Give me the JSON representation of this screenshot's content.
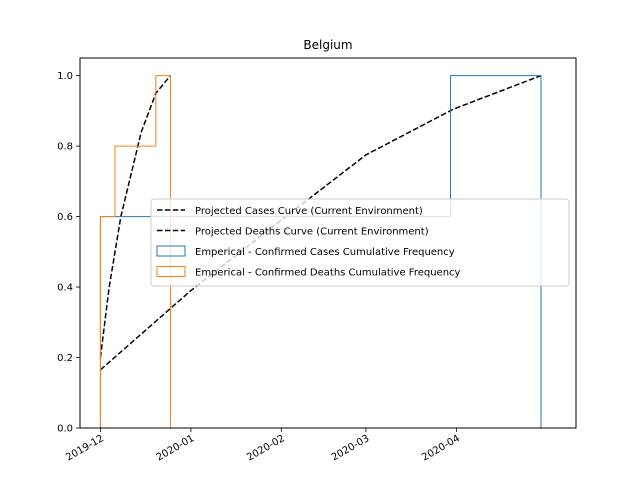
{
  "chart_data": {
    "type": "line",
    "title": "Belgium",
    "xlabel": "",
    "ylabel": "",
    "x_axis": {
      "type": "date",
      "range": [
        "2019-11-24",
        "2020-05-12"
      ],
      "ticks": [
        "2019-12-01",
        "2020-01-01",
        "2020-02-01",
        "2020-03-01",
        "2020-04-01"
      ],
      "tick_labels": [
        "2019-12",
        "2020-01",
        "2020-02",
        "2020-03",
        "2020-04"
      ]
    },
    "y_axis": {
      "range": [
        0,
        1.05
      ],
      "ticks": [
        0.0,
        0.2,
        0.4,
        0.6,
        0.8,
        1.0
      ],
      "tick_labels": [
        "0.0",
        "0.2",
        "0.4",
        "0.6",
        "0.8",
        "1.0"
      ]
    },
    "grid": false,
    "legend_position": "center-right",
    "series": [
      {
        "name": "Projected Cases Curve (Current Environment)",
        "kind": "line",
        "style": "dashed",
        "color": "#000000",
        "points": [
          [
            "2019-12-01",
            0.165
          ],
          [
            "2020-01-01",
            0.39
          ],
          [
            "2020-02-01",
            0.59
          ],
          [
            "2020-03-01",
            0.775
          ],
          [
            "2020-03-31",
            0.905
          ],
          [
            "2020-04-30",
            1.0
          ]
        ]
      },
      {
        "name": "Projected Deaths Curve (Current Environment)",
        "kind": "line",
        "style": "dashed",
        "color": "#000000",
        "points": [
          [
            "2019-12-01",
            0.2
          ],
          [
            "2019-12-04",
            0.4
          ],
          [
            "2019-12-08",
            0.6
          ],
          [
            "2019-12-15",
            0.84
          ],
          [
            "2019-12-20",
            0.95
          ],
          [
            "2019-12-25",
            1.0
          ]
        ]
      },
      {
        "name": "Emperical - Confirmed Cases Cumulative Frequency",
        "kind": "step",
        "color": "#1f77b4",
        "points": [
          [
            "2019-12-01",
            0.0
          ],
          [
            "2019-12-01",
            0.6
          ],
          [
            "2020-03-30",
            0.6
          ],
          [
            "2020-03-30",
            1.0
          ],
          [
            "2020-04-30",
            1.0
          ],
          [
            "2020-04-30",
            0.0
          ]
        ]
      },
      {
        "name": "Emperical - Confirmed Deaths Cumulative Frequency",
        "kind": "step",
        "color": "#ff7f0e",
        "points": [
          [
            "2019-12-01",
            0.0
          ],
          [
            "2019-12-01",
            0.6
          ],
          [
            "2019-12-06",
            0.6
          ],
          [
            "2019-12-06",
            0.8
          ],
          [
            "2019-12-20",
            0.8
          ],
          [
            "2019-12-20",
            1.0
          ],
          [
            "2019-12-25",
            1.0
          ],
          [
            "2019-12-25",
            0.0
          ]
        ]
      }
    ]
  }
}
